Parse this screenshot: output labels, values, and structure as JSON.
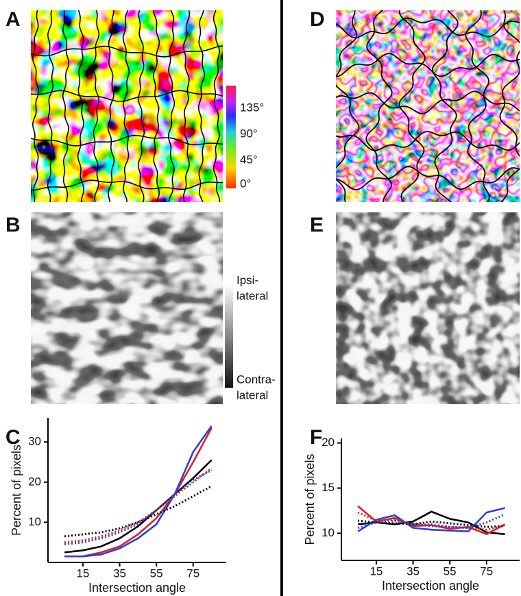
{
  "panel_labels": [
    "A",
    "B",
    "C",
    "D",
    "E",
    "F"
  ],
  "orientation_scale": [
    "135°",
    "90°",
    "45°",
    "0°"
  ],
  "ocular_scale": {
    "top": [
      "Ipsi-",
      "lateral"
    ],
    "bottom": [
      "Contra-",
      "lateral"
    ]
  },
  "chart_data": [
    {
      "type": "line",
      "x_label": "Intersection angle",
      "y_label": "Percent of pixels",
      "x": [
        5,
        15,
        25,
        35,
        45,
        55,
        65,
        75,
        85
      ],
      "xlim": [
        -4,
        93
      ],
      "xticks": [
        15,
        35,
        55,
        75
      ],
      "ylim": [
        0,
        36
      ],
      "yticks": [
        10,
        20,
        30
      ],
      "series": [
        {
          "color": "#000000",
          "style": "solid",
          "values": [
            2.5,
            3,
            4,
            6,
            9,
            13,
            17,
            21,
            25.5
          ]
        },
        {
          "color": "#d42424",
          "style": "solid",
          "values": [
            1.5,
            1.5,
            2.5,
            4,
            7,
            11,
            17,
            25,
            33.5
          ]
        },
        {
          "color": "#2b3fd6",
          "style": "solid",
          "values": [
            1.5,
            1.5,
            2,
            3.5,
            6,
            9.5,
            17,
            27.5,
            34
          ]
        },
        {
          "color": "#000000",
          "style": "dotted",
          "values": [
            6.5,
            7,
            7.5,
            8.5,
            10,
            12,
            14,
            16.5,
            19
          ]
        },
        {
          "color": "#d42424",
          "style": "dotted",
          "values": [
            5,
            5.5,
            6.5,
            8,
            10,
            13,
            16.5,
            20,
            23.5
          ]
        },
        {
          "color": "#2b3fd6",
          "style": "dotted",
          "values": [
            4.5,
            5,
            6,
            7.5,
            9.5,
            13,
            17,
            20.5,
            23
          ]
        }
      ]
    },
    {
      "type": "line",
      "x_label": "Intersection angle",
      "y_label": "Percent of pixels",
      "x": [
        5,
        15,
        25,
        35,
        45,
        55,
        65,
        75,
        85
      ],
      "xlim": [
        -4,
        93
      ],
      "xticks": [
        15,
        35,
        55,
        75
      ],
      "ylim": [
        7,
        20.5
      ],
      "yticks": [
        10,
        15,
        20
      ],
      "series": [
        {
          "color": "#000000",
          "style": "solid",
          "values": [
            11,
            11.2,
            11,
            11.3,
            12.4,
            11.6,
            11.2,
            10.1,
            9.9
          ]
        },
        {
          "color": "#d42424",
          "style": "solid",
          "values": [
            13,
            11.3,
            11.7,
            10.8,
            10.9,
            10.5,
            10.7,
            9.9,
            11
          ]
        },
        {
          "color": "#2b3fd6",
          "style": "solid",
          "values": [
            10.2,
            11.5,
            12,
            10.6,
            10.4,
            10.3,
            10.2,
            12.3,
            12.8
          ]
        },
        {
          "color": "#000000",
          "style": "dotted",
          "values": [
            11.4,
            11.2,
            11.1,
            11,
            11.3,
            11.1,
            10.9,
            10.7,
            10.8
          ]
        },
        {
          "color": "#d42424",
          "style": "dotted",
          "values": [
            12.3,
            11.4,
            11.5,
            11,
            11,
            10.7,
            10.6,
            10.4,
            10.9
          ]
        },
        {
          "color": "#2b3fd6",
          "style": "dotted",
          "values": [
            10.6,
            11.2,
            11.4,
            11,
            10.8,
            10.7,
            10.6,
            11.2,
            12.1
          ]
        }
      ]
    }
  ]
}
